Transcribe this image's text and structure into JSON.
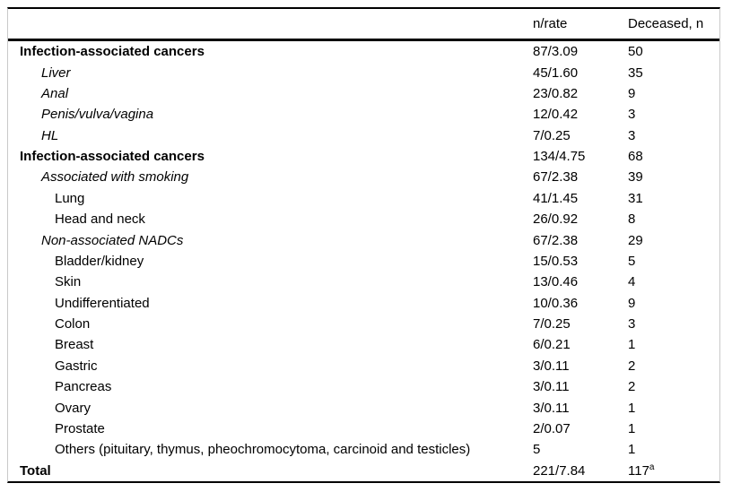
{
  "table": {
    "header": {
      "col1": "",
      "col2": "n/rate",
      "col3": "Deceased, n"
    },
    "rows": [
      {
        "label": "Infection-associated cancers",
        "n_rate": "87/3.09",
        "deceased": "50",
        "level": 0,
        "emphasis": "bold"
      },
      {
        "label": "Liver",
        "n_rate": "45/1.60",
        "deceased": "35",
        "level": 1,
        "emphasis": "italic"
      },
      {
        "label": "Anal",
        "n_rate": "23/0.82",
        "deceased": "9",
        "level": 1,
        "emphasis": "italic"
      },
      {
        "label": "Penis/vulva/vagina",
        "n_rate": "12/0.42",
        "deceased": "3",
        "level": 1,
        "emphasis": "italic"
      },
      {
        "label": "HL",
        "n_rate": "7/0.25",
        "deceased": "3",
        "level": 1,
        "emphasis": "italic"
      },
      {
        "label": "Infection-associated cancers",
        "n_rate": "134/4.75",
        "deceased": "68",
        "level": 0,
        "emphasis": "bold"
      },
      {
        "label": "Associated with smoking",
        "n_rate": "67/2.38",
        "deceased": "39",
        "level": 1,
        "emphasis": "italic"
      },
      {
        "label": "Lung",
        "n_rate": "41/1.45",
        "deceased": "31",
        "level": 2,
        "emphasis": "none"
      },
      {
        "label": "Head and neck",
        "n_rate": "26/0.92",
        "deceased": "8",
        "level": 2,
        "emphasis": "none"
      },
      {
        "label": "Non-associated NADCs",
        "n_rate": "67/2.38",
        "deceased": "29",
        "level": 1,
        "emphasis": "italic"
      },
      {
        "label": "Bladder/kidney",
        "n_rate": "15/0.53",
        "deceased": "5",
        "level": 2,
        "emphasis": "none"
      },
      {
        "label": "Skin",
        "n_rate": "13/0.46",
        "deceased": "4",
        "level": 2,
        "emphasis": "none"
      },
      {
        "label": "Undifferentiated",
        "n_rate": "10/0.36",
        "deceased": "9",
        "level": 2,
        "emphasis": "none"
      },
      {
        "label": "Colon",
        "n_rate": "7/0.25",
        "deceased": "3",
        "level": 2,
        "emphasis": "none"
      },
      {
        "label": "Breast",
        "n_rate": "6/0.21",
        "deceased": "1",
        "level": 2,
        "emphasis": "none"
      },
      {
        "label": "Gastric",
        "n_rate": "3/0.11",
        "deceased": "2",
        "level": 2,
        "emphasis": "none"
      },
      {
        "label": "Pancreas",
        "n_rate": "3/0.11",
        "deceased": "2",
        "level": 2,
        "emphasis": "none"
      },
      {
        "label": "Ovary",
        "n_rate": "3/0.11",
        "deceased": "1",
        "level": 2,
        "emphasis": "none"
      },
      {
        "label": "Prostate",
        "n_rate": "2/0.07",
        "deceased": "1",
        "level": 2,
        "emphasis": "none"
      },
      {
        "label": "Others (pituitary, thymus, pheochromocytoma, carcinoid and testicles)",
        "n_rate": "5",
        "deceased": "1",
        "level": 2,
        "emphasis": "none"
      },
      {
        "label": "Total",
        "n_rate": "221/7.84",
        "deceased": "117",
        "deceased_superscript": "a",
        "level": 0,
        "emphasis": "bold"
      }
    ]
  },
  "colors": {
    "rule": "#000000",
    "side_border": "#c9c9c9",
    "text": "#000000",
    "background": "#ffffff"
  }
}
